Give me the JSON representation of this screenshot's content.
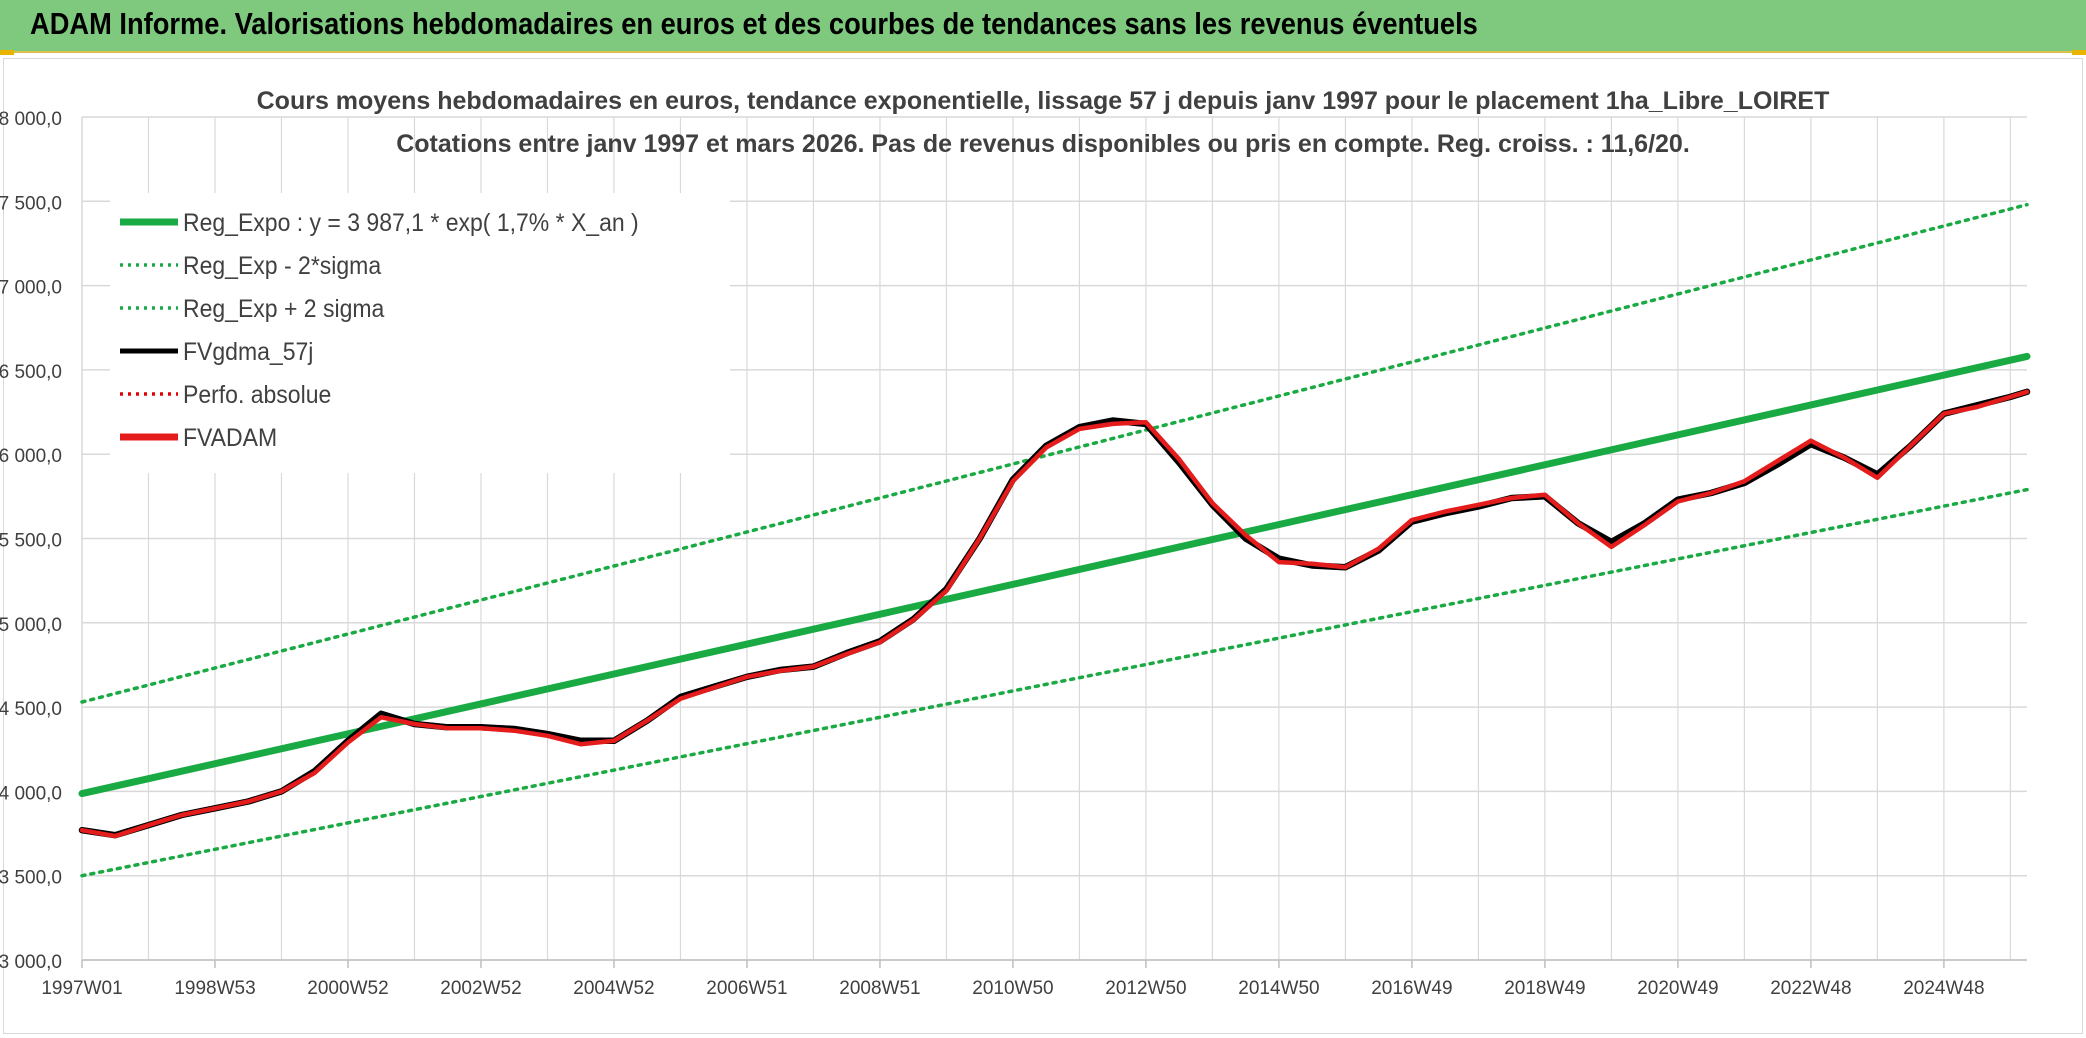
{
  "banner": {
    "title": "ADAM Informe. Valorisations hebdomadaires en euros et des courbes de tendances sans les revenus éventuels"
  },
  "colors": {
    "banner_bg": "#7fc97f",
    "trend": "#1aaa43",
    "band": "#1aaa43",
    "fvgdma": "#000000",
    "perfo": "#e00000",
    "fvadam": "#e51c1c",
    "grid": "#d9d9d9"
  },
  "chart_data": {
    "type": "line",
    "title": "Cours moyens hebdomadaires en euros, tendance exponentielle, lissage 57 j depuis janv 1997 pour le placement 1ha_Libre_LOIRET",
    "subtitle": "Cotations entre janv 1997 et mars 2026. Pas de revenus disponibles ou pris en compte. Reg. croiss. : 11,6/20.",
    "xlabel": "",
    "ylabel": "",
    "ylim": [
      3000,
      8000
    ],
    "ytick_values": [
      3000,
      3500,
      4000,
      4500,
      5000,
      5500,
      6000,
      6500,
      7000,
      7500,
      8000
    ],
    "ytick_labels": [
      "3 000,0",
      "3 500,0",
      "4 000,0",
      "4 500,0",
      "5 000,0",
      "5 500,0",
      "6 000,0",
      "6 500,0",
      "7 000,0",
      "7 500,0",
      "8 000,0"
    ],
    "xlim": [
      1997.0,
      2026.25
    ],
    "xtick_labels": [
      "1997W01",
      "1998W53",
      "2000W52",
      "2002W52",
      "2004W52",
      "2006W51",
      "2008W51",
      "2010W50",
      "2012W50",
      "2014W50",
      "2016W49",
      "2018W49",
      "2020W49",
      "2022W48",
      "2024W48"
    ],
    "xtick_years": [
      1997,
      1999,
      2001,
      2003,
      2005,
      2007,
      2009,
      2011,
      2013,
      2015,
      2017,
      2019,
      2021,
      2023,
      2025
    ],
    "legend_position": "top-left",
    "grid": true,
    "series": [
      {
        "name": "Reg_Expo : y = 3 987,1 * exp( 1,7% *  X_an )",
        "style": "solid-thick",
        "color": "#1aaa43",
        "x": [
          1997.0,
          2026.25
        ],
        "values": [
          3987.1,
          6580
        ]
      },
      {
        "name": "Reg_Exp - 2*sigma",
        "style": "dotted",
        "color": "#1aaa43",
        "x": [
          1997.0,
          2026.25
        ],
        "values": [
          3500,
          5790
        ]
      },
      {
        "name": "Reg_Exp + 2 sigma",
        "style": "dotted",
        "color": "#1aaa43",
        "x": [
          1997.0,
          2026.25
        ],
        "values": [
          4530,
          7480
        ]
      },
      {
        "name": "FVgdma_57j",
        "style": "solid",
        "color": "#000000",
        "x": [
          1997.0,
          1997.5,
          1998.0,
          1998.5,
          1999.0,
          1999.5,
          2000.0,
          2000.5,
          2001.0,
          2001.5,
          2002.0,
          2002.5,
          2003.0,
          2003.5,
          2004.0,
          2004.5,
          2005.0,
          2005.5,
          2006.0,
          2006.5,
          2007.0,
          2007.5,
          2008.0,
          2008.5,
          2009.0,
          2009.5,
          2010.0,
          2010.5,
          2011.0,
          2011.5,
          2012.0,
          2012.5,
          2013.0,
          2013.5,
          2014.0,
          2014.5,
          2015.0,
          2015.5,
          2016.0,
          2016.5,
          2017.0,
          2017.5,
          2018.0,
          2018.5,
          2019.0,
          2019.5,
          2020.0,
          2020.5,
          2021.0,
          2021.5,
          2022.0,
          2022.5,
          2023.0,
          2023.5,
          2024.0,
          2024.5,
          2025.0,
          2025.5,
          2026.0,
          2026.25
        ],
        "values": [
          3770,
          3740,
          3800,
          3860,
          3900,
          3940,
          4000,
          4120,
          4300,
          4460,
          4400,
          4380,
          4380,
          4370,
          4340,
          4300,
          4300,
          4420,
          4560,
          4620,
          4680,
          4720,
          4740,
          4820,
          4890,
          5020,
          5200,
          5500,
          5850,
          6050,
          6160,
          6200,
          6180,
          5950,
          5700,
          5500,
          5380,
          5340,
          5330,
          5430,
          5600,
          5650,
          5690,
          5740,
          5750,
          5590,
          5480,
          5590,
          5730,
          5770,
          5830,
          5940,
          6060,
          5980,
          5880,
          6050,
          6240,
          6290,
          6340,
          6370
        ]
      },
      {
        "name": "Perfo. absolue",
        "style": "dotted",
        "color": "#e00000",
        "x": [],
        "values": []
      },
      {
        "name": "FVADAM",
        "style": "solid-thick",
        "color": "#e51c1c",
        "x": [
          1997.0,
          1997.5,
          1998.0,
          1998.5,
          1999.0,
          1999.5,
          2000.0,
          2000.5,
          2001.0,
          2001.5,
          2002.0,
          2002.5,
          2003.0,
          2003.5,
          2004.0,
          2004.5,
          2005.0,
          2005.5,
          2006.0,
          2006.5,
          2007.0,
          2007.5,
          2008.0,
          2008.5,
          2009.0,
          2009.5,
          2010.0,
          2010.5,
          2011.0,
          2011.5,
          2012.0,
          2012.5,
          2013.0,
          2013.5,
          2014.0,
          2014.5,
          2015.0,
          2015.5,
          2016.0,
          2016.5,
          2017.0,
          2017.5,
          2018.0,
          2018.5,
          2019.0,
          2019.5,
          2020.0,
          2020.5,
          2021.0,
          2021.5,
          2022.0,
          2022.5,
          2023.0,
          2023.5,
          2024.0,
          2024.5,
          2025.0,
          2025.5,
          2026.0,
          2026.25
        ],
        "values": [
          3770,
          3735,
          3800,
          3860,
          3900,
          3940,
          4000,
          4110,
          4290,
          4440,
          4400,
          4375,
          4375,
          4360,
          4330,
          4280,
          4300,
          4420,
          4550,
          4615,
          4680,
          4715,
          4740,
          4815,
          4885,
          5015,
          5190,
          5500,
          5840,
          6040,
          6150,
          6180,
          6190,
          5970,
          5710,
          5520,
          5360,
          5350,
          5330,
          5440,
          5610,
          5660,
          5700,
          5740,
          5760,
          5590,
          5450,
          5580,
          5720,
          5770,
          5840,
          5960,
          6080,
          5980,
          5860,
          6050,
          6240,
          6280,
          6340,
          6370
        ]
      }
    ]
  }
}
